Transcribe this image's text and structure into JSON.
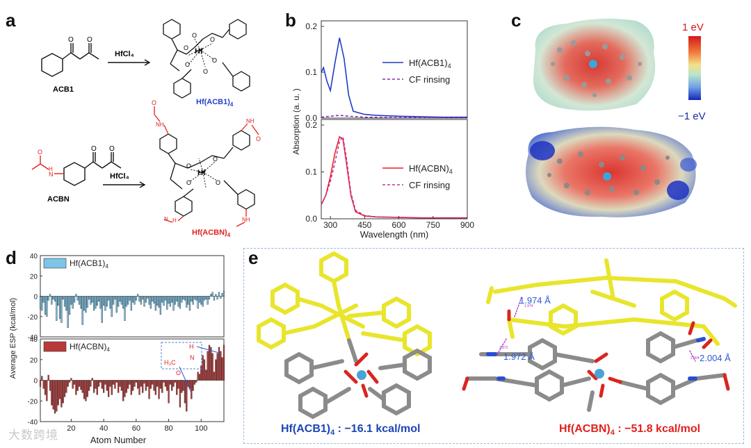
{
  "panel_letters": {
    "a": "a",
    "b": "b",
    "c": "c",
    "d": "d",
    "e": "e"
  },
  "panel_a": {
    "reagent1": "HfCl₄",
    "reagent2": "HfCl₄",
    "compound1": "ACB1",
    "compound2": "ACBN",
    "product1": "Hf(ACB1)",
    "product1_sub": "4",
    "product2": "Hf(ACBN)",
    "product2_sub": "4",
    "hf_atom": "Hf",
    "colors": {
      "product1": "#2741c8",
      "product2": "#e0211d",
      "amide": "#e0211d"
    }
  },
  "panel_b": {
    "ylabel": "Absorption (a. u. )",
    "xlabel": "Wavelength (nm)",
    "x_ticks": [
      "300",
      "450",
      "600",
      "750",
      "900"
    ],
    "top_y_ticks": [
      "0.2",
      "0.1",
      "0.0"
    ],
    "bottom_y_ticks": [
      "0.2",
      "0.1",
      "0.0"
    ],
    "top_legend": {
      "solid": "Hf(ACB1)",
      "solid_sub": "4",
      "dashed": "CF rinsing"
    },
    "bottom_legend": {
      "solid": "Hf(ACBN)",
      "solid_sub": "4",
      "dashed": "CF rinsing"
    }
  },
  "panel_c": {
    "scale_top": "1 eV",
    "scale_bottom": "−1 eV"
  },
  "panel_d": {
    "ylabel": "Average ESP (kcal/mol)",
    "xlabel": "Atom Number",
    "top_legend": "Hf(ACB1)",
    "top_legend_sub": "4",
    "bottom_legend": "Hf(ACBN)",
    "bottom_legend_sub": "4",
    "top_y_ticks": [
      "40",
      "20",
      "0",
      "-20",
      "-40"
    ],
    "bottom_y_ticks": [
      "40",
      "20",
      "0",
      "-20",
      "-40"
    ],
    "x_ticks": [
      "20",
      "40",
      "60",
      "80",
      "100"
    ],
    "inset_labels": {
      "h3c": "H₃C",
      "n": "N",
      "h": "H",
      "o": "O"
    }
  },
  "panel_e": {
    "caption_left": "Hf(ACB1)",
    "caption_left_sub": "4",
    "caption_left_value": " : −16.1 kcal/mol",
    "caption_right": "Hf(ACBN)",
    "caption_right_sub": "4",
    "caption_right_value": " : −51.8 kcal/mol",
    "distances": [
      "1.974 Å",
      "1.972 Å",
      "2.004 Å"
    ],
    "mini_labels": [
      "1.974",
      "1.972",
      "2.004"
    ]
  },
  "watermark": "大数跨境",
  "chart_data": [
    {
      "type": "line",
      "title": "",
      "xlabel": "Wavelength (nm)",
      "ylabel": "Absorption (a. u. )",
      "xlim": [
        260,
        900
      ],
      "ylim": [
        0,
        0.2
      ],
      "series": [
        {
          "name": "Hf(ACB1)4",
          "x": [
            260,
            270,
            285,
            300,
            320,
            340,
            360,
            380,
            400,
            450,
            500,
            600,
            700,
            800,
            900
          ],
          "values": [
            0.1,
            0.11,
            0.08,
            0.06,
            0.12,
            0.175,
            0.13,
            0.05,
            0.015,
            0.008,
            0.006,
            0.004,
            0.003,
            0.002,
            0.002
          ]
        },
        {
          "name": "CF rinsing",
          "x": [
            260,
            300,
            340,
            380,
            450,
            600,
            900
          ],
          "values": [
            0.002,
            0.004,
            0.006,
            0.004,
            0.002,
            0.001,
            0.001
          ]
        }
      ]
    },
    {
      "type": "line",
      "title": "",
      "xlabel": "Wavelength (nm)",
      "ylabel": "Absorption (a. u. )",
      "xlim": [
        260,
        900
      ],
      "ylim": [
        0,
        0.2
      ],
      "series": [
        {
          "name": "Hf(ACBN)4",
          "x": [
            260,
            280,
            300,
            320,
            340,
            355,
            370,
            390,
            410,
            450,
            500,
            600,
            700,
            800,
            900
          ],
          "values": [
            0.03,
            0.05,
            0.09,
            0.14,
            0.175,
            0.17,
            0.12,
            0.05,
            0.015,
            0.006,
            0.004,
            0.003,
            0.002,
            0.002,
            0.002
          ]
        },
        {
          "name": "CF rinsing",
          "x": [
            260,
            280,
            300,
            320,
            340,
            355,
            370,
            390,
            410,
            450,
            500,
            600,
            700,
            800,
            900
          ],
          "values": [
            0.03,
            0.05,
            0.08,
            0.12,
            0.165,
            0.175,
            0.13,
            0.055,
            0.018,
            0.007,
            0.004,
            0.003,
            0.002,
            0.002,
            0.002
          ]
        }
      ]
    },
    {
      "type": "bar",
      "title": "",
      "xlabel": "Atom Number",
      "ylabel": "Average ESP (kcal/mol)",
      "ylim": [
        -40,
        40
      ],
      "series": [
        {
          "name": "Hf(ACB1)4",
          "values": [
            -12,
            -14,
            -6,
            -18,
            -20,
            -4,
            2,
            -8,
            -3,
            -5,
            -24,
            -9,
            -22,
            -26,
            -3,
            -10,
            -14,
            -31,
            -18,
            -8,
            -12,
            -6,
            2,
            -4,
            -8,
            -12,
            -28,
            -14,
            -16,
            -11,
            -3,
            -8,
            -6,
            -14,
            -12,
            -9,
            -5,
            -12,
            -26,
            -9,
            -14,
            -10,
            -4,
            -12,
            -20,
            -8,
            -3,
            -16,
            -10,
            -5,
            -8,
            -12,
            -24,
            -10,
            -8,
            -4,
            -14,
            -6,
            -8,
            -4,
            2,
            -5,
            -8,
            -3,
            -10,
            -6,
            -2,
            -8,
            -12,
            -5,
            -7,
            -14,
            -9,
            -11,
            -18,
            -6,
            -9,
            -4,
            -13,
            -7,
            -10,
            -6,
            -14,
            -8,
            -5,
            -10,
            -12,
            -6,
            -3,
            -4,
            -11,
            -8,
            -14,
            -5,
            -8,
            -3,
            -4,
            -12,
            -6,
            -8,
            -10,
            -4,
            -3,
            -8,
            -3,
            2,
            4,
            -4,
            2,
            -3,
            4,
            -2,
            3,
            5
          ]
        }
      ]
    },
    {
      "type": "bar",
      "title": "",
      "xlabel": "Atom Number",
      "ylabel": "Average ESP (kcal/mol)",
      "ylim": [
        -40,
        40
      ],
      "series": [
        {
          "name": "Hf(ACBN)4",
          "values": [
            -6,
            4,
            -8,
            -14,
            -20,
            5,
            -10,
            -24,
            -28,
            -32,
            -30,
            -24,
            -18,
            -26,
            -22,
            -16,
            -12,
            -6,
            -2,
            2,
            -8,
            -4,
            -14,
            -10,
            -6,
            -9,
            -12,
            -18,
            -20,
            -16,
            -10,
            -6,
            2,
            -12,
            -8,
            -14,
            -6,
            -2,
            -8,
            -12,
            -4,
            -10,
            -16,
            -6,
            -14,
            -4,
            -8,
            -2,
            -12,
            -6,
            -10,
            -20,
            -16,
            -12,
            -8,
            -4,
            -14,
            -10,
            -6,
            -2,
            -8,
            -14,
            -6,
            -12,
            -3,
            -10,
            -6,
            -18,
            -8,
            -4,
            -10,
            -14,
            -6,
            -18,
            -8,
            -12,
            -2,
            -6,
            -10,
            -22,
            -4,
            -10,
            -6,
            -2,
            -14,
            -8,
            -26,
            -12,
            -10,
            -22,
            -30,
            -6,
            -8,
            -18,
            -10,
            -4,
            -2,
            8,
            6,
            14,
            24,
            20,
            10,
            28,
            34,
            32,
            26,
            8,
            20,
            26,
            32,
            28,
            22,
            34
          ]
        }
      ]
    }
  ]
}
